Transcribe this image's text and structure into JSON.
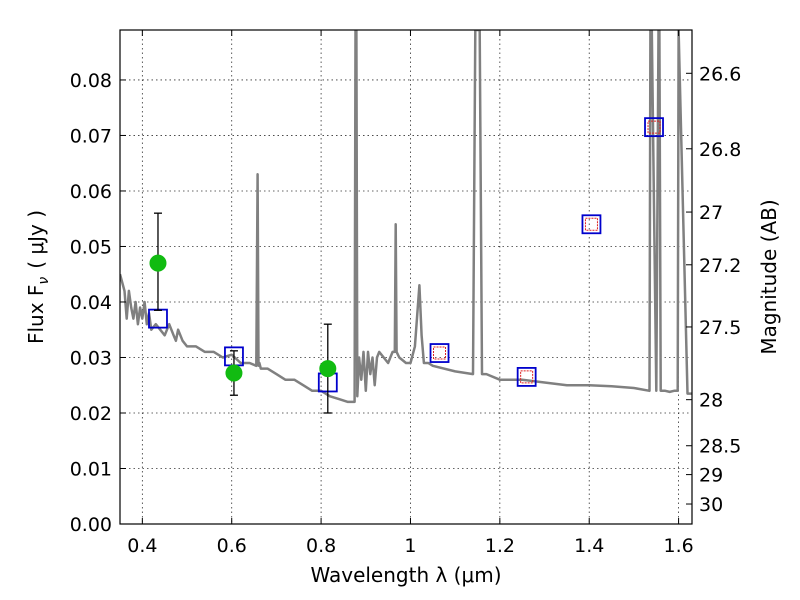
{
  "chart_data": {
    "type": "scatter",
    "xlabel": "Wavelength  λ (μm)",
    "ylabel": "Flux  F",
    "ylabel_sub": "ν",
    "ylabel_unit": "( μJy )",
    "y2label": "Magnitude (AB)",
    "xlim": [
      0.35,
      1.63
    ],
    "ylim": [
      0.0,
      0.089
    ],
    "grid": true,
    "xticks": [
      0.4,
      0.6,
      0.8,
      1.0,
      1.2,
      1.4,
      1.6
    ],
    "xtick_labels": [
      "0.4",
      "0.6",
      "0.8",
      "1",
      "1.2",
      "1.4",
      "1.6"
    ],
    "yticks": [
      0.0,
      0.01,
      0.02,
      0.03,
      0.04,
      0.05,
      0.06,
      0.07,
      0.08
    ],
    "ytick_labels": [
      "0.00",
      "0.01",
      "0.02",
      "0.03",
      "0.04",
      "0.05",
      "0.06",
      "0.07",
      "0.08"
    ],
    "y2ticks": [
      {
        "label": "26.6",
        "flux": 0.0812
      },
      {
        "label": "26.8",
        "flux": 0.0676
      },
      {
        "label": "27",
        "flux": 0.0562
      },
      {
        "label": "27.2",
        "flux": 0.0467
      },
      {
        "label": "27.5",
        "flux": 0.0355
      },
      {
        "label": "28",
        "flux": 0.0224
      },
      {
        "label": "28.5",
        "flux": 0.0141
      },
      {
        "label": "29",
        "flux": 0.0089
      },
      {
        "label": "30",
        "flux": 0.0036
      }
    ],
    "series": [
      {
        "marker": "line",
        "color": "#808080",
        "x": [
          0.35,
          0.36,
          0.365,
          0.37,
          0.375,
          0.38,
          0.385,
          0.39,
          0.395,
          0.4,
          0.405,
          0.41,
          0.415,
          0.42,
          0.43,
          0.44,
          0.45,
          0.46,
          0.47,
          0.475,
          0.48,
          0.49,
          0.5,
          0.52,
          0.54,
          0.56,
          0.58,
          0.6,
          0.62,
          0.64,
          0.655,
          0.658,
          0.66,
          0.662,
          0.665,
          0.68,
          0.7,
          0.72,
          0.74,
          0.76,
          0.78,
          0.8,
          0.82,
          0.84,
          0.86,
          0.875,
          0.877,
          0.879,
          0.881,
          0.885,
          0.89,
          0.895,
          0.9,
          0.905,
          0.91,
          0.915,
          0.92,
          0.925,
          0.93,
          0.94,
          0.95,
          0.96,
          0.965,
          0.967,
          0.969,
          0.975,
          0.99,
          1.0,
          1.01,
          1.02,
          1.025,
          1.03,
          1.04,
          1.05,
          1.1,
          1.14,
          1.145,
          1.155,
          1.16,
          1.17,
          1.2,
          1.25,
          1.3,
          1.35,
          1.4,
          1.45,
          1.5,
          1.535,
          1.537,
          1.54,
          1.55,
          1.555,
          1.557,
          1.56,
          1.57,
          1.58,
          1.59,
          1.598,
          1.6,
          1.62,
          1.63
        ],
        "y": [
          0.045,
          0.042,
          0.037,
          0.042,
          0.039,
          0.037,
          0.04,
          0.036,
          0.039,
          0.037,
          0.04,
          0.036,
          0.038,
          0.035,
          0.036,
          0.035,
          0.034,
          0.036,
          0.034,
          0.033,
          0.035,
          0.033,
          0.032,
          0.032,
          0.031,
          0.031,
          0.03,
          0.0305,
          0.029,
          0.029,
          0.0285,
          0.063,
          0.0285,
          0.029,
          0.028,
          0.028,
          0.027,
          0.026,
          0.026,
          0.025,
          0.024,
          0.024,
          0.023,
          0.0225,
          0.022,
          0.022,
          0.089,
          0.089,
          0.023,
          0.03,
          0.026,
          0.031,
          0.024,
          0.031,
          0.027,
          0.03,
          0.025,
          0.03,
          0.031,
          0.03,
          0.029,
          0.031,
          0.031,
          0.054,
          0.031,
          0.03,
          0.029,
          0.029,
          0.032,
          0.043,
          0.034,
          0.029,
          0.029,
          0.0285,
          0.0275,
          0.027,
          0.089,
          0.089,
          0.027,
          0.027,
          0.026,
          0.026,
          0.0255,
          0.025,
          0.025,
          0.0248,
          0.0245,
          0.024,
          0.089,
          0.089,
          0.024,
          0.089,
          0.089,
          0.024,
          0.024,
          0.0238,
          0.024,
          0.024,
          0.089,
          0.0235,
          0.0235
        ]
      },
      {
        "marker": "open-square",
        "color": "#0000cc",
        "x": [
          0.435,
          0.605,
          0.815,
          1.065,
          1.26,
          1.405,
          1.545
        ],
        "y": [
          0.037,
          0.0302,
          0.0255,
          0.0308,
          0.0265,
          0.054,
          0.0715
        ]
      },
      {
        "marker": "open-square-small",
        "color": "#dd2222",
        "x": [
          1.065,
          1.26,
          1.405,
          1.545
        ],
        "y": [
          0.0308,
          0.0265,
          0.054,
          0.0715
        ]
      },
      {
        "marker": "filled-circle",
        "color": "#11bb11",
        "x": [
          0.435,
          0.605,
          0.815
        ],
        "y": [
          0.047,
          0.0272,
          0.028
        ],
        "yerr_low": [
          0.0085,
          0.004,
          0.008
        ],
        "yerr_high": [
          0.009,
          0.004,
          0.008
        ]
      }
    ]
  }
}
